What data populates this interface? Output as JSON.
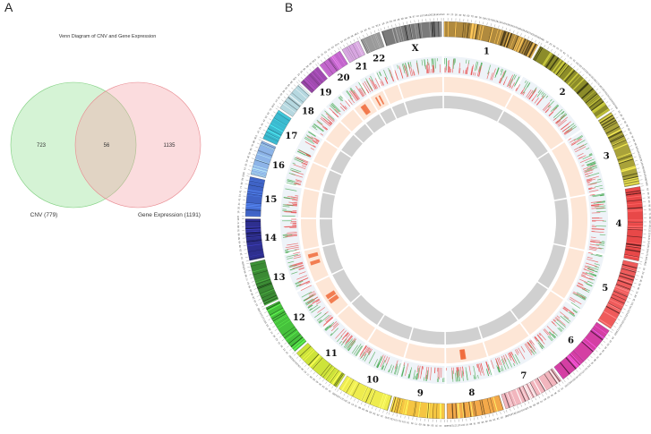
{
  "panels": {
    "a_label": "A",
    "b_label": "B"
  },
  "chart_data": [
    {
      "type": "venn",
      "title": "Venn Diagram of CNV and Gene Expression",
      "sets": [
        {
          "name": "CNV (779)",
          "size": 779,
          "only": 723,
          "color": "#9be39b"
        },
        {
          "name": "Gene Expression (1191)",
          "size": 1191,
          "only": 1135,
          "color": "#f4a3a8"
        }
      ],
      "intersection": 56,
      "labels": {
        "left_only": "723",
        "overlap": "56",
        "right_only": "1135"
      }
    },
    {
      "type": "circos",
      "chromosomes": [
        {
          "name": "1",
          "length": 249,
          "color": "#b08a3e"
        },
        {
          "name": "2",
          "length": 243,
          "color": "#8c8c2a"
        },
        {
          "name": "3",
          "length": 198,
          "color": "#a9a23a"
        },
        {
          "name": "4",
          "length": 191,
          "color": "#e84848"
        },
        {
          "name": "5",
          "length": 181,
          "color": "#ef5b5b"
        },
        {
          "name": "6",
          "length": 171,
          "color": "#d43fa3"
        },
        {
          "name": "7",
          "length": 159,
          "color": "#f2b6be"
        },
        {
          "name": "8",
          "length": 146,
          "color": "#f3a94a"
        },
        {
          "name": "9",
          "length": 141,
          "color": "#f5c542"
        },
        {
          "name": "10",
          "length": 136,
          "color": "#eeec4e"
        },
        {
          "name": "11",
          "length": 135,
          "color": "#cde33a"
        },
        {
          "name": "12",
          "length": 134,
          "color": "#46c23c"
        },
        {
          "name": "13",
          "length": 115,
          "color": "#3b8a34"
        },
        {
          "name": "14",
          "length": 107,
          "color": "#2e2f8f"
        },
        {
          "name": "15",
          "length": 102,
          "color": "#3f63c6"
        },
        {
          "name": "16",
          "length": 90,
          "color": "#8db4e8"
        },
        {
          "name": "17",
          "length": 83,
          "color": "#3bbad0"
        },
        {
          "name": "18",
          "length": 78,
          "color": "#b6d8e0"
        },
        {
          "name": "19",
          "length": 59,
          "color": "#a04bb0"
        },
        {
          "name": "20",
          "length": 63,
          "color": "#c266cc"
        },
        {
          "name": "21",
          "length": 48,
          "color": "#d7a6e0"
        },
        {
          "name": "22",
          "length": 51,
          "color": "#9a9a9a"
        },
        {
          "name": "X",
          "length": 155,
          "color": "#7a7a7a"
        }
      ],
      "tracks": [
        "ideogram",
        "gene expression (up/down)",
        "CNV (gain/loss)",
        "overlap genes"
      ],
      "colors": {
        "up": "#e84848",
        "down": "#3fa64a",
        "cnv_band": "#fde6d6",
        "overlap_band": "#d0d0d0",
        "gain": "#f06a3a"
      }
    }
  ]
}
